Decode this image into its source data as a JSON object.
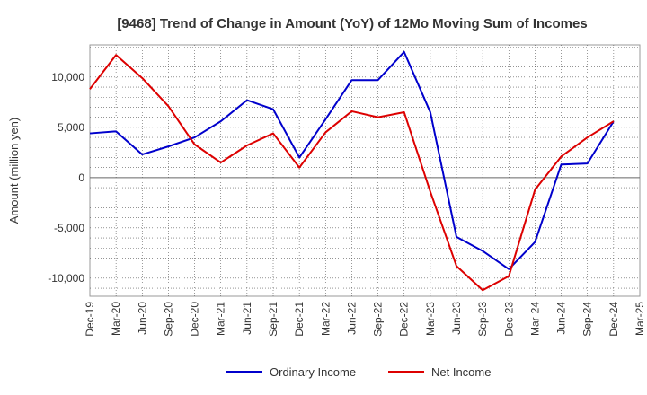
{
  "chart_data": {
    "type": "line",
    "title": "[9468]  Trend of Change in Amount (YoY) of 12Mo Moving Sum of Incomes",
    "ylabel": "Amount (million yen)",
    "xlabel": "",
    "ylim": [
      -11800,
      13200
    ],
    "yticks": [
      10000,
      5000,
      0,
      -5000,
      -10000
    ],
    "ytick_labels": [
      "10,000",
      "5,000",
      "0",
      "-5,000",
      "-10,000"
    ],
    "x": [
      "Dec-19",
      "Mar-20",
      "Jun-20",
      "Sep-20",
      "Dec-20",
      "Mar-21",
      "Jun-21",
      "Sep-21",
      "Dec-21",
      "Mar-22",
      "Jun-22",
      "Sep-22",
      "Dec-22",
      "Mar-23",
      "Jun-23",
      "Sep-23",
      "Dec-23",
      "Mar-24",
      "Jun-24",
      "Sep-24",
      "Dec-24",
      "Mar-25"
    ],
    "grid": true,
    "legend_position": "bottom",
    "series": [
      {
        "name": "Ordinary Income",
        "color": "#0000cc",
        "values": [
          4400,
          4600,
          2300,
          3100,
          4000,
          5600,
          7700,
          6800,
          2000,
          5800,
          9700,
          9700,
          12500,
          6500,
          -5900,
          -7300,
          -9100,
          -6400,
          1300,
          1400,
          5600,
          null
        ]
      },
      {
        "name": "Net Income",
        "color": "#dd0000",
        "values": [
          8800,
          12200,
          9900,
          7100,
          3300,
          1500,
          3200,
          4400,
          1000,
          4500,
          6600,
          6000,
          6500,
          -1400,
          -8800,
          -11200,
          -9800,
          -1200,
          2100,
          4000,
          5600,
          null
        ]
      }
    ]
  }
}
